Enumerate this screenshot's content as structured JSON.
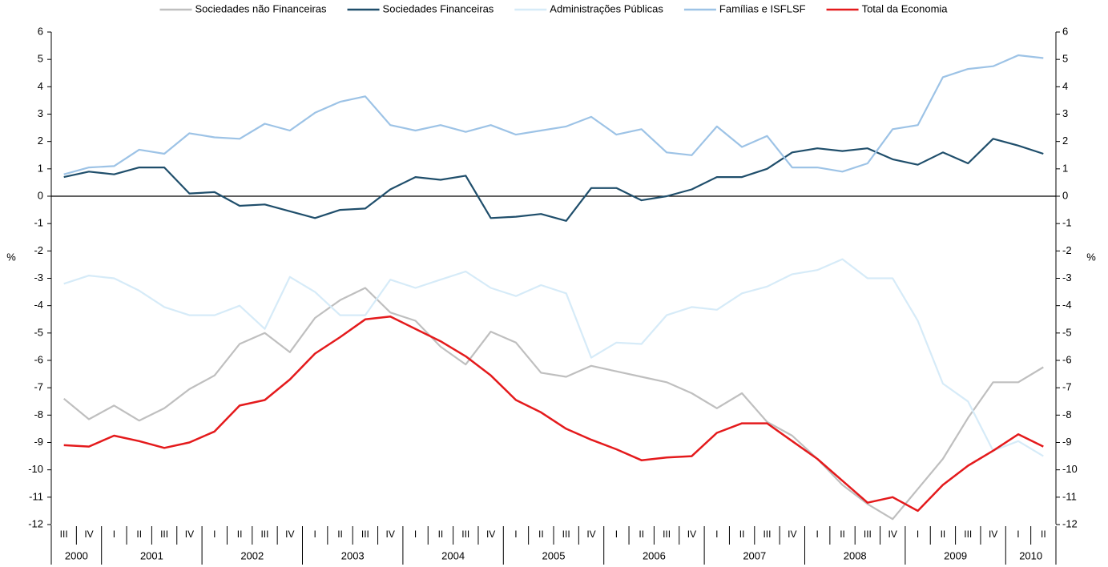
{
  "chart_data": {
    "type": "line",
    "y_label": "%",
    "y2_label": "%",
    "category_groups": [
      {
        "label": "2000",
        "quarters": [
          "III",
          "IV"
        ]
      },
      {
        "label": "2001",
        "quarters": [
          "I",
          "II",
          "III",
          "IV"
        ]
      },
      {
        "label": "2002",
        "quarters": [
          "I",
          "II",
          "III",
          "IV"
        ]
      },
      {
        "label": "2003",
        "quarters": [
          "I",
          "II",
          "III",
          "IV"
        ]
      },
      {
        "label": "2004",
        "quarters": [
          "I",
          "II",
          "III",
          "IV"
        ]
      },
      {
        "label": "2005",
        "quarters": [
          "I",
          "II",
          "III",
          "IV"
        ]
      },
      {
        "label": "2006",
        "quarters": [
          "I",
          "II",
          "III",
          "IV"
        ]
      },
      {
        "label": "2007",
        "quarters": [
          "I",
          "II",
          "III",
          "IV"
        ]
      },
      {
        "label": "2008",
        "quarters": [
          "I",
          "II",
          "III",
          "IV"
        ]
      },
      {
        "label": "2009",
        "quarters": [
          "I",
          "II",
          "III",
          "IV"
        ]
      },
      {
        "label": "2010",
        "quarters": [
          "I",
          "II"
        ]
      }
    ],
    "ylim": [
      -12,
      6
    ],
    "yticks": [
      -12,
      -11,
      -10,
      -9,
      -8,
      -7,
      -6,
      -5,
      -4,
      -3,
      -2,
      -1,
      0,
      1,
      2,
      3,
      4,
      5,
      6
    ],
    "y2lim": [
      -12,
      6
    ],
    "y2ticks": [
      -12,
      -11,
      -10,
      -9,
      -8,
      -7,
      -6,
      -5,
      -4,
      -3,
      -2,
      -1,
      0,
      1,
      2,
      3,
      4,
      5,
      6
    ],
    "legend_position": "top",
    "series": [
      {
        "name": "Sociedades não Financeiras",
        "color": "#bfbfbf",
        "values": [
          -7.4,
          -8.15,
          -7.65,
          -8.2,
          -7.75,
          -7.05,
          -6.55,
          -5.4,
          -5.0,
          -5.7,
          -4.45,
          -3.8,
          -3.35,
          -4.25,
          -4.55,
          -5.5,
          -6.15,
          -4.95,
          -5.35,
          -6.45,
          -6.6,
          -6.2,
          -6.4,
          -6.6,
          -6.8,
          -7.2,
          -7.75,
          -7.2,
          -8.25,
          -8.75,
          -9.6,
          -10.55,
          -11.25,
          -11.8,
          -10.7,
          -9.6,
          -8.1,
          -6.8,
          -6.8,
          -6.25
        ]
      },
      {
        "name": "Sociedades Financeiras",
        "color": "#1f4e6b",
        "values": [
          0.7,
          0.9,
          0.8,
          1.05,
          1.05,
          0.1,
          0.15,
          -0.35,
          -0.3,
          -0.55,
          -0.8,
          -0.5,
          -0.45,
          0.25,
          0.7,
          0.6,
          0.75,
          -0.8,
          -0.75,
          -0.65,
          -0.9,
          0.3,
          0.3,
          -0.15,
          0,
          0.25,
          0.7,
          0.7,
          1.0,
          1.6,
          1.75,
          1.65,
          1.75,
          1.35,
          1.15,
          1.6,
          1.2,
          2.1,
          1.85,
          1.55
        ]
      },
      {
        "name": "Administrações Públicas",
        "color": "#d6ebf8",
        "values": [
          -3.2,
          -2.9,
          -3.0,
          -3.45,
          -4.05,
          -4.35,
          -4.35,
          -4.0,
          -4.85,
          -2.95,
          -3.5,
          -4.35,
          -4.35,
          -3.05,
          -3.35,
          -3.05,
          -2.75,
          -3.35,
          -3.65,
          -3.25,
          -3.55,
          -5.9,
          -5.35,
          -5.4,
          -4.35,
          -4.05,
          -4.15,
          -3.55,
          -3.3,
          -2.85,
          -2.7,
          -2.3,
          -3.0,
          -3.0,
          -4.55,
          -6.85,
          -7.5,
          -9.3,
          -8.95,
          -9.5
        ]
      },
      {
        "name": "Famílias e ISFLSF",
        "color": "#9dc3e6",
        "values": [
          0.8,
          1.05,
          1.1,
          1.7,
          1.55,
          2.3,
          2.15,
          2.1,
          2.65,
          2.4,
          3.05,
          3.45,
          3.65,
          2.6,
          2.4,
          2.6,
          2.35,
          2.6,
          2.25,
          2.4,
          2.55,
          2.9,
          2.25,
          2.45,
          1.6,
          1.5,
          2.55,
          1.8,
          2.2,
          1.05,
          1.05,
          0.9,
          1.2,
          2.45,
          2.6,
          4.35,
          4.65,
          4.75,
          5.15,
          5.05
        ]
      },
      {
        "name": "Total da Economia",
        "color": "#e41a1c",
        "values": [
          -9.1,
          -9.15,
          -8.75,
          -8.95,
          -9.2,
          -9.0,
          -8.6,
          -7.65,
          -7.45,
          -6.7,
          -5.75,
          -5.15,
          -4.5,
          -4.4,
          -4.85,
          -5.3,
          -5.85,
          -6.55,
          -7.45,
          -7.9,
          -8.5,
          -8.9,
          -9.25,
          -9.65,
          -9.55,
          -9.5,
          -8.65,
          -8.3,
          -8.3,
          -8.95,
          -9.6,
          -10.4,
          -11.2,
          -11.0,
          -11.5,
          -10.55,
          -9.85,
          -9.3,
          -8.7,
          -9.15
        ]
      }
    ]
  }
}
